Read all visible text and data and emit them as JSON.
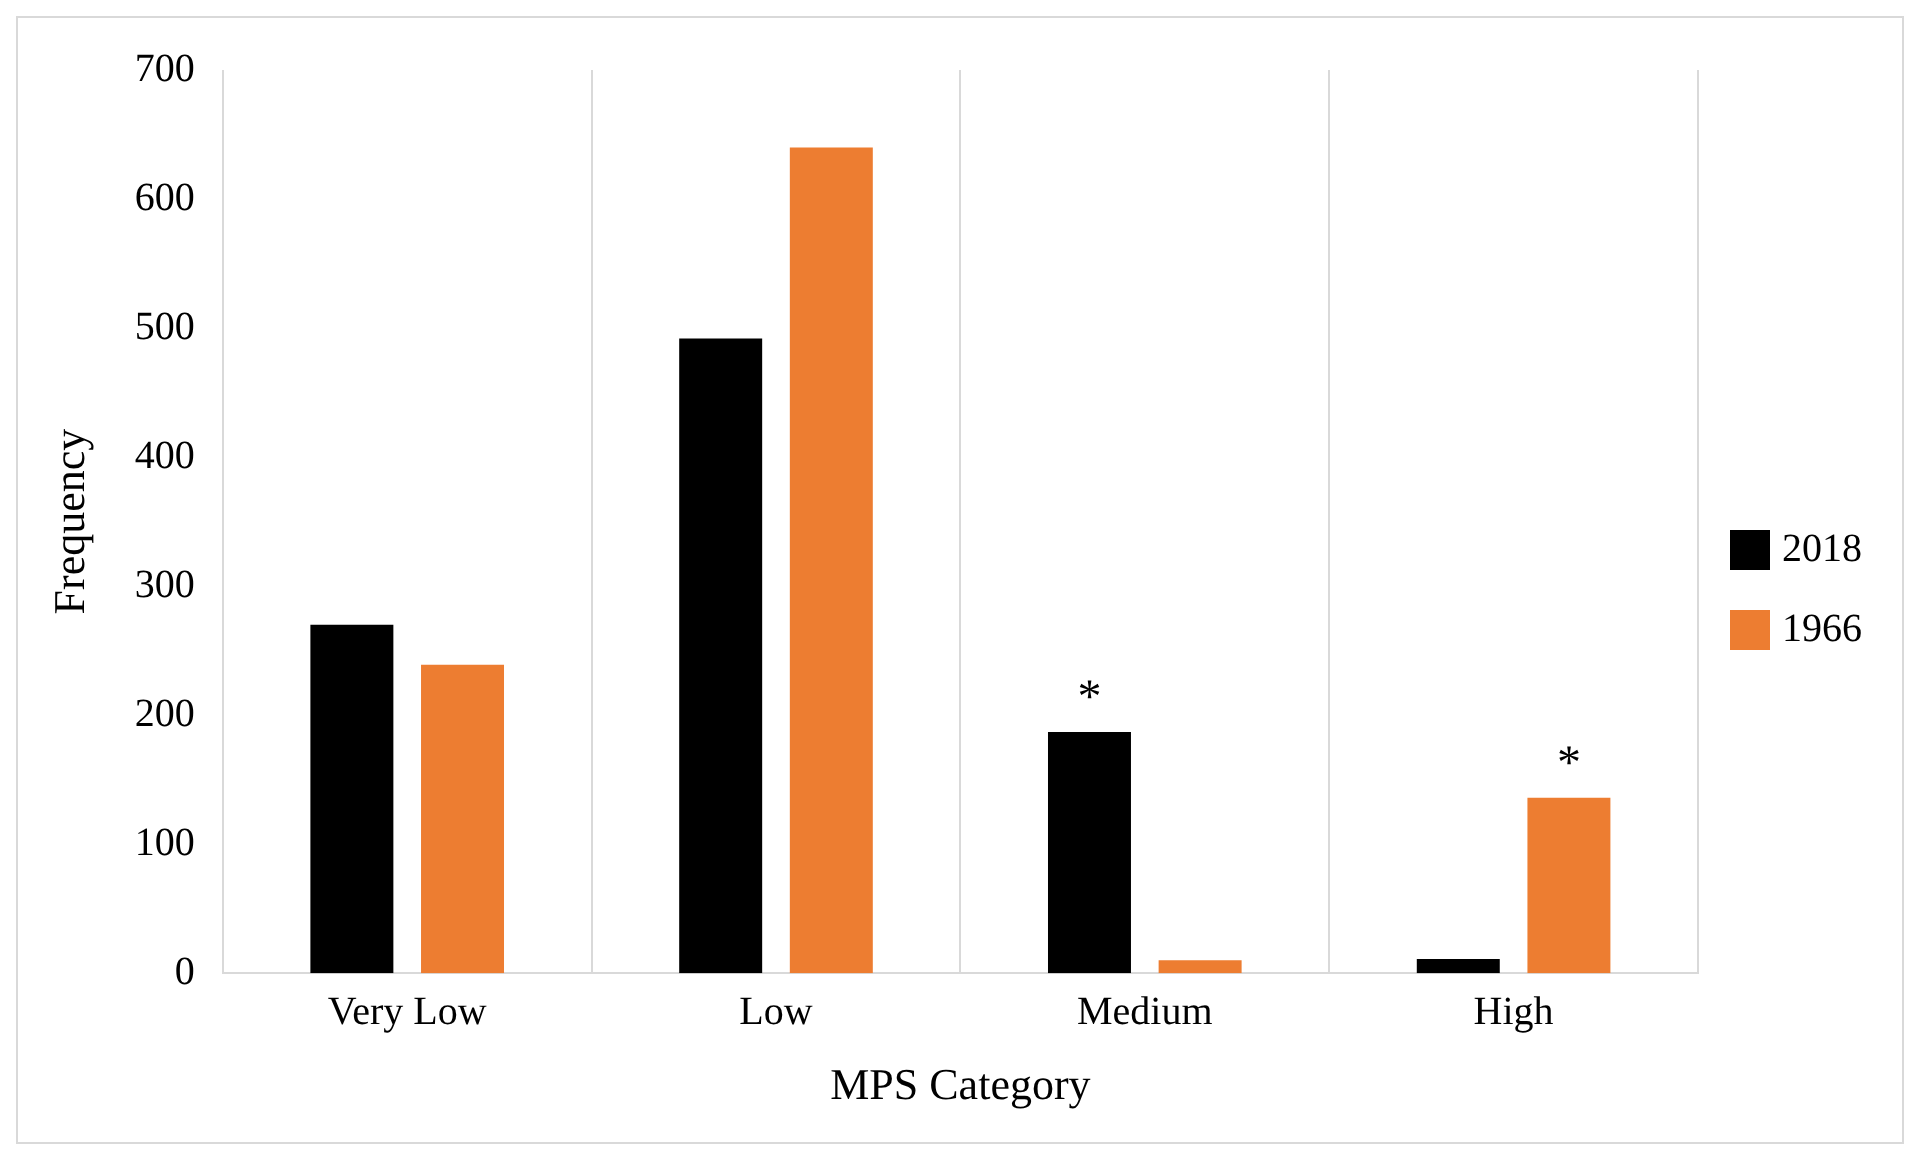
{
  "chart_data": {
    "type": "bar",
    "xlabel": "MPS Category",
    "ylabel": "Frequency",
    "categories": [
      "Very Low",
      "Low",
      "Medium",
      "High"
    ],
    "series": [
      {
        "name": "2018",
        "color": "#000000",
        "values": [
          270,
          492,
          187,
          11
        ]
      },
      {
        "name": "1966",
        "color": "#ed7d31",
        "values": [
          239,
          640,
          10,
          136
        ]
      }
    ],
    "ylim": [
      0,
      700
    ],
    "yticks": [
      0,
      100,
      200,
      300,
      400,
      500,
      600,
      700
    ],
    "grid": "x",
    "legend": "right",
    "annotations": [
      "*",
      "*"
    ]
  }
}
